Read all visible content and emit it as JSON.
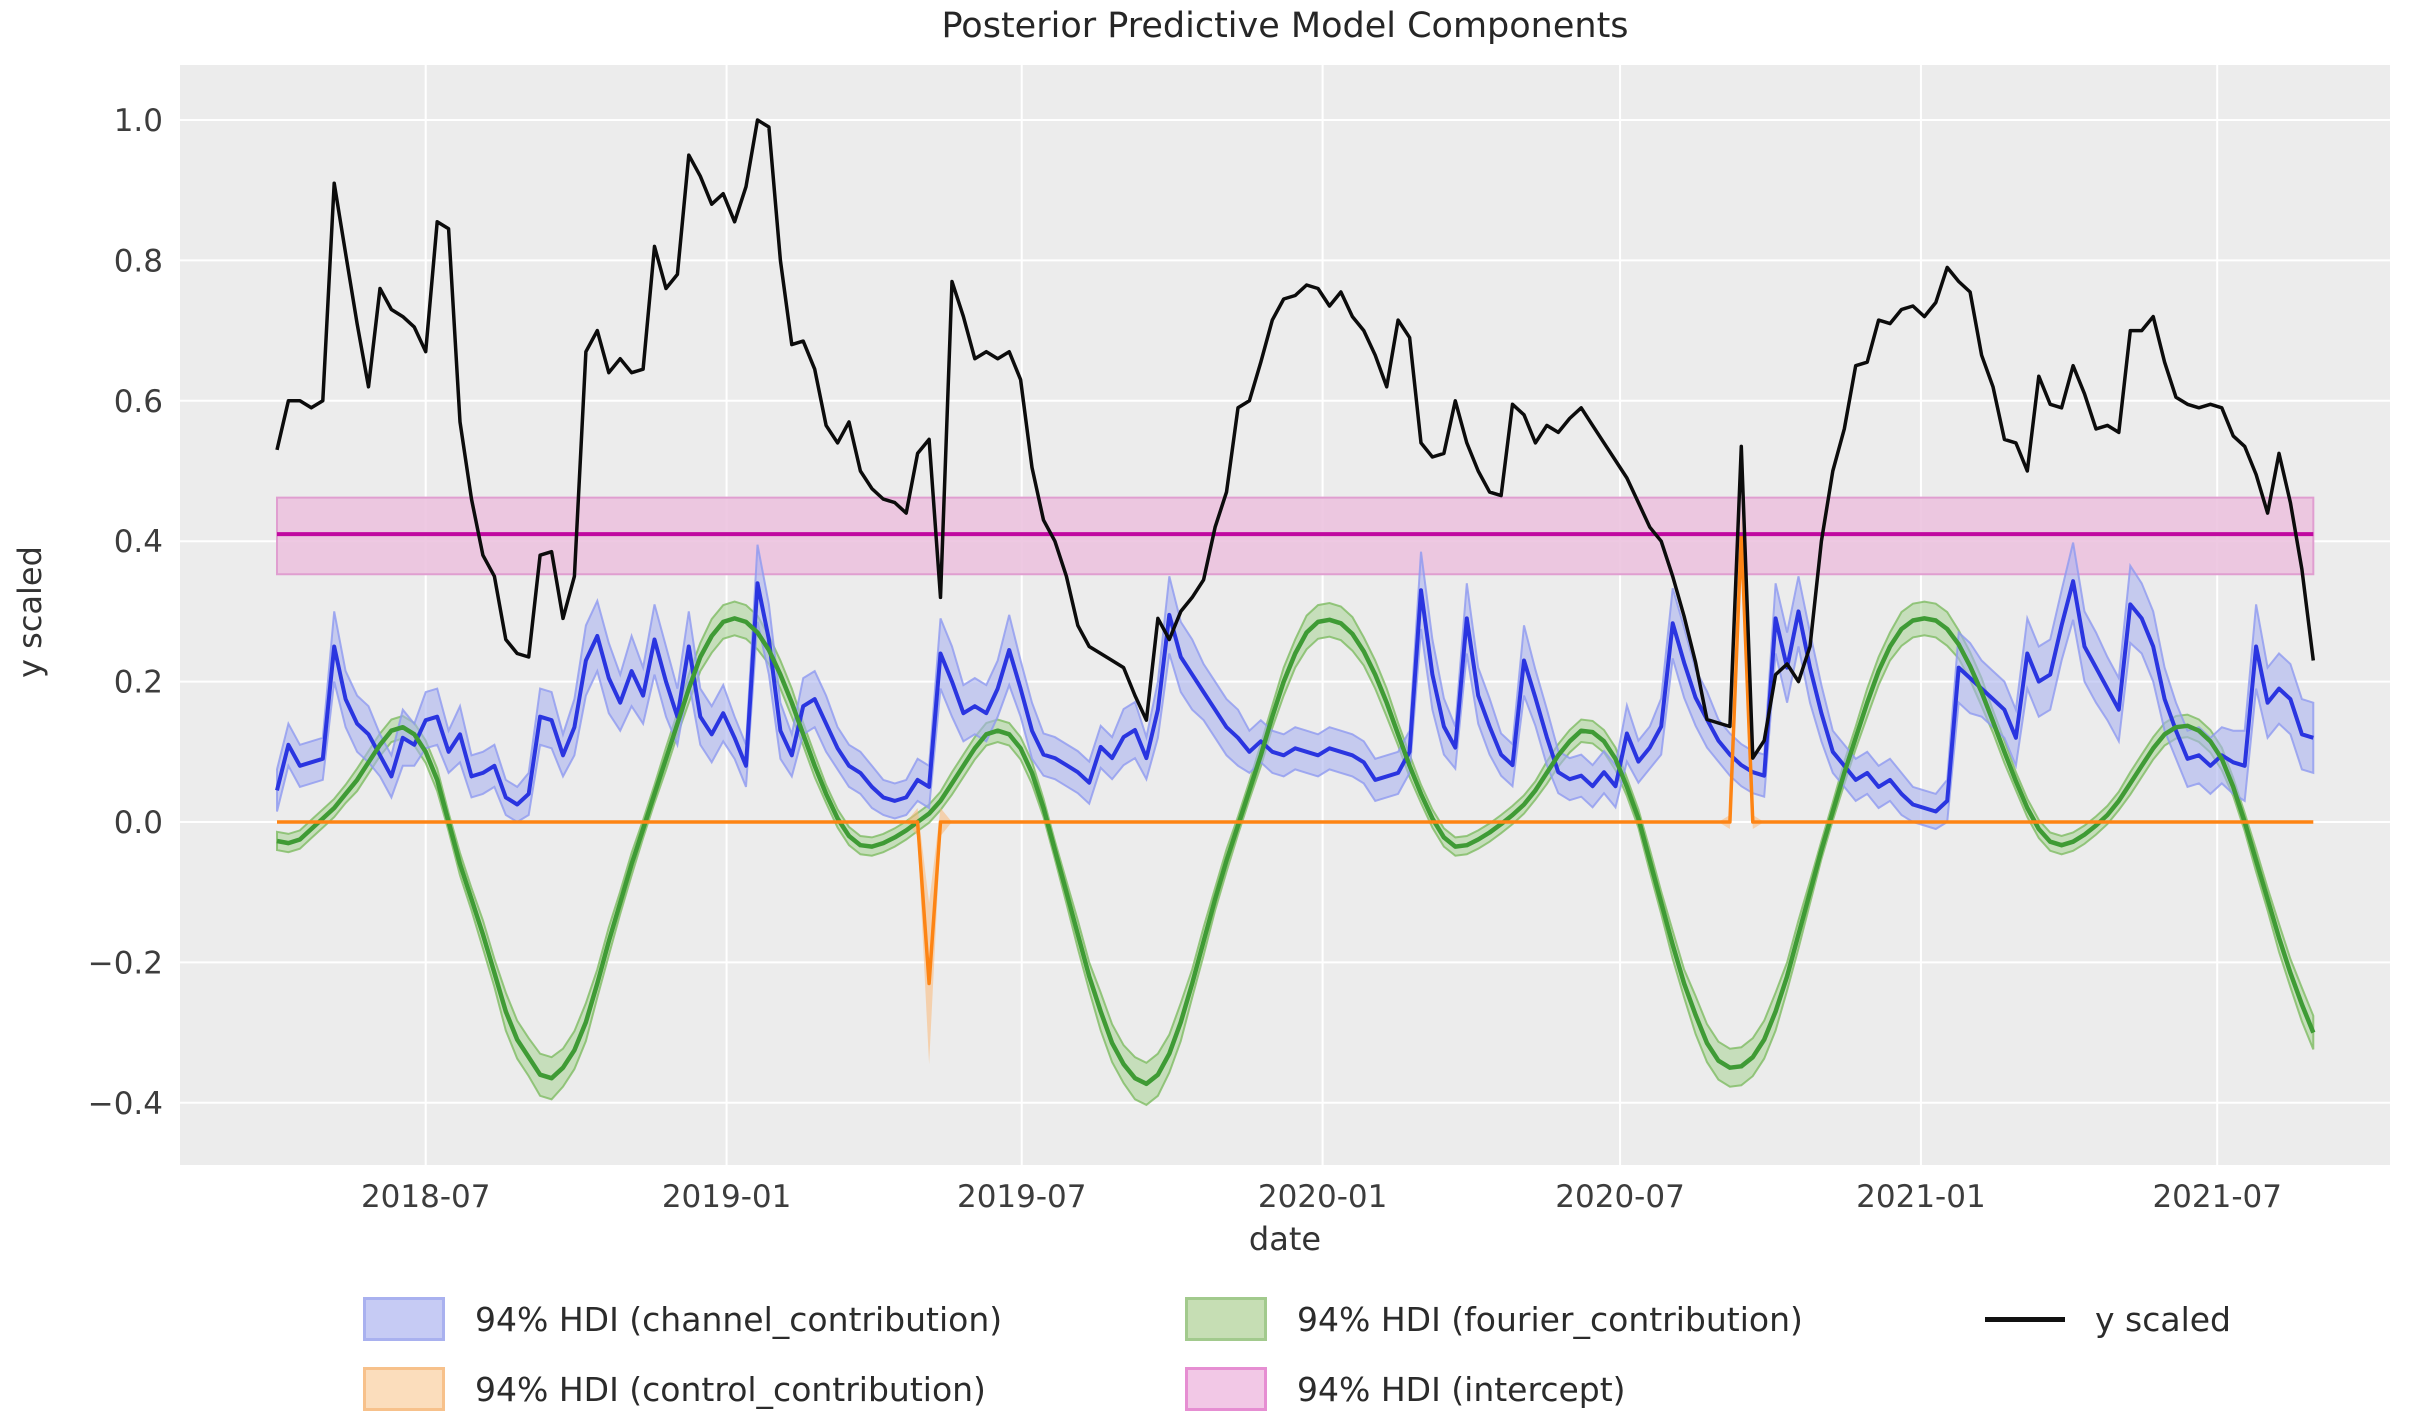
{
  "title": "Posterior Predictive Model Components",
  "axes": {
    "xlabel": "date",
    "ylabel": "y scaled"
  },
  "legend": {
    "items": [
      {
        "key": "channel",
        "label": "94% HDI (channel_contribution)",
        "kind": "patch",
        "fill": "#c6cbf4",
        "edge": "#a9b1ef"
      },
      {
        "key": "control",
        "label": "94% HDI (control_contribution)",
        "kind": "patch",
        "fill": "#fbddbc",
        "edge": "#f7c18b"
      },
      {
        "key": "fourier",
        "label": "94% HDI (fourier_contribution)",
        "kind": "patch",
        "fill": "#c6deb4",
        "edge": "#a2ca8d"
      },
      {
        "key": "intercept",
        "label": "94% HDI (intercept)",
        "kind": "patch",
        "fill": "#f2c8e6",
        "edge": "#e68ed2"
      },
      {
        "key": "y_scaled",
        "label": "y scaled",
        "kind": "line",
        "fill": "#111111",
        "edge": "#111111"
      }
    ]
  },
  "chart_data": {
    "type": "line",
    "title": "Posterior Predictive Model Components",
    "xlabel": "date",
    "ylabel": "y scaled",
    "x_start": "2018-04-01",
    "x_step_days": 7,
    "n_points": 179,
    "ylim": [
      -0.45,
      1.07
    ],
    "grid": true,
    "plot_bg": "#ececec",
    "grid_color": "#ffffff",
    "layout": {
      "plot": [
        180,
        65,
        2390,
        1165
      ],
      "x0": 277,
      "dx": 11.44,
      "y0": 822,
      "yscale": 702
    },
    "xticks": {
      "week_positions": [
        13.0,
        39.3,
        65.1,
        91.4,
        117.4,
        143.7,
        169.6
      ],
      "labels": [
        "2018-07",
        "2019-01",
        "2019-07",
        "2020-01",
        "2020-07",
        "2021-01",
        "2021-07"
      ]
    },
    "yticks": [
      {
        "v": -0.4,
        "label": "−0.4"
      },
      {
        "v": -0.2,
        "label": "−0.2"
      },
      {
        "v": 0.0,
        "label": "0.0"
      },
      {
        "v": 0.2,
        "label": "0.2"
      },
      {
        "v": 0.4,
        "label": "0.4"
      },
      {
        "v": 0.6,
        "label": "0.6"
      },
      {
        "v": 0.8,
        "label": "0.8"
      },
      {
        "v": 1.0,
        "label": "1.0"
      }
    ],
    "series": [
      {
        "key": "intercept",
        "label": "94% HDI (intercept)",
        "kind": "hband",
        "mean": 0.41,
        "low": 0.353,
        "high": 0.462,
        "line_color": "#c008a0",
        "band_fill": "#ecc3df",
        "band_edge": "#e09ed0",
        "band_opacity": 0.9,
        "line_width": 4
      },
      {
        "key": "fourier_contribution",
        "label": "94% HDI (fourier_contribution)",
        "kind": "band_line",
        "line_color": "#3f9b35",
        "band_fill": "#a8d493",
        "band_edge": "#7ebc63",
        "band_opacity": 0.55,
        "line_width": 4.5,
        "mean": [
          -0.027,
          -0.03,
          -0.025,
          -0.01,
          0.005,
          0.02,
          0.04,
          0.06,
          0.085,
          0.11,
          0.13,
          0.135,
          0.125,
          0.1,
          0.06,
          0.0,
          -0.06,
          -0.11,
          -0.16,
          -0.215,
          -0.27,
          -0.31,
          -0.335,
          -0.36,
          -0.365,
          -0.35,
          -0.325,
          -0.285,
          -0.23,
          -0.17,
          -0.115,
          -0.06,
          -0.01,
          0.04,
          0.09,
          0.14,
          0.19,
          0.235,
          0.265,
          0.285,
          0.29,
          0.285,
          0.27,
          0.245,
          0.21,
          0.17,
          0.125,
          0.08,
          0.04,
          0.005,
          -0.02,
          -0.033,
          -0.035,
          -0.03,
          -0.022,
          -0.012,
          0.0,
          0.012,
          0.03,
          0.055,
          0.08,
          0.105,
          0.125,
          0.13,
          0.125,
          0.105,
          0.07,
          0.02,
          -0.04,
          -0.1,
          -0.16,
          -0.22,
          -0.27,
          -0.315,
          -0.345,
          -0.365,
          -0.373,
          -0.36,
          -0.33,
          -0.285,
          -0.23,
          -0.17,
          -0.11,
          -0.055,
          -0.005,
          0.045,
          0.095,
          0.15,
          0.2,
          0.24,
          0.27,
          0.285,
          0.288,
          0.283,
          0.268,
          0.243,
          0.21,
          0.17,
          0.125,
          0.08,
          0.04,
          0.005,
          -0.022,
          -0.035,
          -0.033,
          -0.025,
          -0.015,
          -0.003,
          0.01,
          0.025,
          0.045,
          0.07,
          0.095,
          0.115,
          0.13,
          0.128,
          0.115,
          0.09,
          0.05,
          0.005,
          -0.055,
          -0.115,
          -0.175,
          -0.23,
          -0.275,
          -0.315,
          -0.34,
          -0.35,
          -0.348,
          -0.335,
          -0.31,
          -0.27,
          -0.22,
          -0.16,
          -0.1,
          -0.04,
          0.015,
          0.07,
          0.12,
          0.17,
          0.215,
          0.25,
          0.275,
          0.287,
          0.29,
          0.287,
          0.275,
          0.253,
          0.222,
          0.185,
          0.143,
          0.1,
          0.058,
          0.02,
          -0.01,
          -0.028,
          -0.033,
          -0.028,
          -0.018,
          -0.005,
          0.01,
          0.03,
          0.055,
          0.08,
          0.105,
          0.125,
          0.135,
          0.137,
          0.13,
          0.115,
          0.09,
          0.05,
          0.0,
          -0.055,
          -0.11,
          -0.165,
          -0.215,
          -0.26,
          -0.3
        ],
        "hw": [
          0.013,
          0.013,
          0.013,
          0.013,
          0.013,
          0.013,
          0.013,
          0.016,
          0.016,
          0.016,
          0.016,
          0.016,
          0.016,
          0.016,
          0.016,
          0.013,
          0.016,
          0.016,
          0.02,
          0.02,
          0.027,
          0.027,
          0.027,
          0.03,
          0.03,
          0.027,
          0.027,
          0.027,
          0.02,
          0.02,
          0.016,
          0.016,
          0.013,
          0.013,
          0.016,
          0.016,
          0.02,
          0.02,
          0.024,
          0.024,
          0.024,
          0.024,
          0.024,
          0.02,
          0.02,
          0.02,
          0.016,
          0.016,
          0.013,
          0.013,
          0.013,
          0.013,
          0.013,
          0.013,
          0.013,
          0.013,
          0.013,
          0.013,
          0.013,
          0.016,
          0.016,
          0.016,
          0.016,
          0.016,
          0.016,
          0.016,
          0.016,
          0.013,
          0.013,
          0.016,
          0.02,
          0.02,
          0.027,
          0.027,
          0.027,
          0.03,
          0.03,
          0.03,
          0.027,
          0.027,
          0.02,
          0.02,
          0.016,
          0.016,
          0.013,
          0.013,
          0.016,
          0.016,
          0.02,
          0.02,
          0.024,
          0.024,
          0.024,
          0.024,
          0.024,
          0.02,
          0.02,
          0.02,
          0.016,
          0.016,
          0.013,
          0.013,
          0.013,
          0.013,
          0.013,
          0.013,
          0.013,
          0.013,
          0.013,
          0.013,
          0.013,
          0.016,
          0.016,
          0.016,
          0.016,
          0.016,
          0.016,
          0.016,
          0.013,
          0.013,
          0.016,
          0.016,
          0.02,
          0.02,
          0.027,
          0.027,
          0.027,
          0.027,
          0.027,
          0.027,
          0.027,
          0.027,
          0.02,
          0.02,
          0.016,
          0.013,
          0.013,
          0.016,
          0.016,
          0.02,
          0.02,
          0.02,
          0.024,
          0.024,
          0.024,
          0.024,
          0.024,
          0.02,
          0.02,
          0.02,
          0.016,
          0.016,
          0.013,
          0.013,
          0.013,
          0.013,
          0.013,
          0.013,
          0.013,
          0.013,
          0.013,
          0.013,
          0.016,
          0.016,
          0.016,
          0.016,
          0.016,
          0.016,
          0.016,
          0.016,
          0.016,
          0.013,
          0.013,
          0.016,
          0.016,
          0.02,
          0.02,
          0.024,
          0.024
        ]
      },
      {
        "key": "channel_contribution",
        "label": "94% HDI (channel_contribution)",
        "kind": "band_line",
        "line_color": "#2a35e0",
        "band_fill": "#a9b2f0",
        "band_edge": "#8e9af0",
        "band_opacity": 0.58,
        "line_width": 4,
        "mean": [
          0.045,
          0.11,
          0.08,
          0.085,
          0.09,
          0.25,
          0.175,
          0.14,
          0.125,
          0.095,
          0.065,
          0.12,
          0.11,
          0.145,
          0.15,
          0.1,
          0.125,
          0.065,
          0.07,
          0.08,
          0.035,
          0.025,
          0.04,
          0.15,
          0.145,
          0.095,
          0.135,
          0.23,
          0.265,
          0.205,
          0.17,
          0.215,
          0.18,
          0.26,
          0.2,
          0.15,
          0.25,
          0.15,
          0.125,
          0.155,
          0.12,
          0.08,
          0.34,
          0.26,
          0.13,
          0.095,
          0.165,
          0.175,
          0.14,
          0.105,
          0.08,
          0.07,
          0.05,
          0.035,
          0.03,
          0.035,
          0.06,
          0.05,
          0.24,
          0.2,
          0.155,
          0.165,
          0.155,
          0.19,
          0.245,
          0.19,
          0.13,
          0.096,
          0.091,
          0.081,
          0.071,
          0.056,
          0.107,
          0.091,
          0.121,
          0.131,
          0.091,
          0.16,
          0.295,
          0.235,
          0.21,
          0.185,
          0.16,
          0.135,
          0.12,
          0.1,
          0.115,
          0.1,
          0.095,
          0.105,
          0.1,
          0.095,
          0.105,
          0.1,
          0.095,
          0.085,
          0.06,
          0.065,
          0.07,
          0.1,
          0.33,
          0.21,
          0.136,
          0.106,
          0.29,
          0.18,
          0.136,
          0.096,
          0.081,
          0.23,
          0.177,
          0.121,
          0.071,
          0.061,
          0.066,
          0.051,
          0.071,
          0.051,
          0.126,
          0.086,
          0.106,
          0.136,
          0.283,
          0.227,
          0.177,
          0.146,
          0.116,
          0.096,
          0.081,
          0.071,
          0.066,
          0.29,
          0.22,
          0.3,
          0.22,
          0.155,
          0.1,
          0.08,
          0.06,
          0.07,
          0.05,
          0.06,
          0.04,
          0.025,
          0.02,
          0.015,
          0.03,
          0.22,
          0.205,
          0.19,
          0.175,
          0.16,
          0.12,
          0.24,
          0.2,
          0.21,
          0.28,
          0.343,
          0.25,
          0.22,
          0.19,
          0.16,
          0.31,
          0.29,
          0.25,
          0.175,
          0.13,
          0.09,
          0.095,
          0.08,
          0.095,
          0.085,
          0.08,
          0.25,
          0.17,
          0.19,
          0.175,
          0.125,
          0.12
        ],
        "hw": [
          0.03,
          0.03,
          0.03,
          0.03,
          0.03,
          0.05,
          0.04,
          0.04,
          0.04,
          0.03,
          0.03,
          0.04,
          0.03,
          0.04,
          0.04,
          0.03,
          0.04,
          0.03,
          0.03,
          0.03,
          0.025,
          0.025,
          0.03,
          0.04,
          0.04,
          0.03,
          0.04,
          0.05,
          0.05,
          0.05,
          0.04,
          0.05,
          0.04,
          0.05,
          0.05,
          0.04,
          0.05,
          0.04,
          0.04,
          0.04,
          0.03,
          0.03,
          0.055,
          0.05,
          0.04,
          0.03,
          0.04,
          0.04,
          0.04,
          0.03,
          0.03,
          0.03,
          0.03,
          0.025,
          0.025,
          0.025,
          0.03,
          0.03,
          0.05,
          0.05,
          0.04,
          0.04,
          0.04,
          0.04,
          0.05,
          0.04,
          0.04,
          0.03,
          0.03,
          0.03,
          0.03,
          0.03,
          0.03,
          0.03,
          0.04,
          0.04,
          0.03,
          0.04,
          0.055,
          0.05,
          0.05,
          0.04,
          0.04,
          0.04,
          0.04,
          0.03,
          0.03,
          0.03,
          0.03,
          0.03,
          0.03,
          0.03,
          0.03,
          0.03,
          0.03,
          0.03,
          0.03,
          0.03,
          0.03,
          0.03,
          0.055,
          0.05,
          0.04,
          0.03,
          0.05,
          0.04,
          0.04,
          0.03,
          0.03,
          0.05,
          0.04,
          0.04,
          0.03,
          0.03,
          0.03,
          0.03,
          0.03,
          0.03,
          0.04,
          0.03,
          0.03,
          0.04,
          0.05,
          0.05,
          0.04,
          0.04,
          0.03,
          0.03,
          0.03,
          0.03,
          0.03,
          0.05,
          0.05,
          0.05,
          0.05,
          0.04,
          0.03,
          0.03,
          0.03,
          0.03,
          0.03,
          0.03,
          0.03,
          0.025,
          0.025,
          0.025,
          0.03,
          0.05,
          0.05,
          0.04,
          0.04,
          0.04,
          0.04,
          0.05,
          0.05,
          0.05,
          0.05,
          0.055,
          0.05,
          0.05,
          0.045,
          0.045,
          0.055,
          0.05,
          0.05,
          0.045,
          0.04,
          0.04,
          0.04,
          0.04,
          0.04,
          0.045,
          0.05,
          0.06,
          0.05,
          0.05,
          0.05,
          0.05,
          0.05
        ]
      },
      {
        "key": "control_contribution",
        "label": "94% HDI (control_contribution)",
        "kind": "event_band_line",
        "line_color": "#fd8414",
        "band_fill": "#fcb97a",
        "band_edge": "none",
        "band_opacity": 0.55,
        "line_width": 3.5,
        "baseline": 0.0,
        "events": [
          {
            "index": 56,
            "value": 0.0,
            "hw": 0.02
          },
          {
            "index": 57,
            "value": -0.23,
            "hw": 0.115
          },
          {
            "index": 58,
            "value": 0.0,
            "hw": 0.02
          },
          {
            "index": 127,
            "value": 0.0,
            "hw": 0.01
          },
          {
            "index": 128,
            "value": 0.41,
            "hw": 0.03
          },
          {
            "index": 129,
            "value": 0.0,
            "hw": 0.01
          }
        ]
      },
      {
        "key": "y_scaled",
        "label": "y scaled",
        "kind": "line",
        "line_color": "#0c0c0c",
        "line_width": 3.5,
        "values": [
          0.53,
          0.6,
          0.6,
          0.59,
          0.6,
          0.91,
          0.81,
          0.71,
          0.62,
          0.76,
          0.73,
          0.72,
          0.705,
          0.67,
          0.855,
          0.845,
          0.57,
          0.46,
          0.38,
          0.35,
          0.26,
          0.24,
          0.235,
          0.38,
          0.385,
          0.29,
          0.35,
          0.67,
          0.7,
          0.64,
          0.66,
          0.64,
          0.645,
          0.82,
          0.76,
          0.78,
          0.95,
          0.92,
          0.88,
          0.895,
          0.855,
          0.905,
          1.0,
          0.99,
          0.8,
          0.68,
          0.685,
          0.645,
          0.565,
          0.54,
          0.57,
          0.5,
          0.475,
          0.46,
          0.455,
          0.44,
          0.525,
          0.545,
          0.32,
          0.77,
          0.72,
          0.66,
          0.67,
          0.66,
          0.67,
          0.63,
          0.505,
          0.43,
          0.4,
          0.35,
          0.28,
          0.25,
          0.24,
          0.23,
          0.22,
          0.18,
          0.145,
          0.29,
          0.26,
          0.3,
          0.32,
          0.345,
          0.42,
          0.47,
          0.59,
          0.6,
          0.655,
          0.715,
          0.745,
          0.75,
          0.765,
          0.76,
          0.735,
          0.755,
          0.72,
          0.7,
          0.665,
          0.62,
          0.715,
          0.69,
          0.54,
          0.52,
          0.525,
          0.6,
          0.54,
          0.5,
          0.47,
          0.465,
          0.595,
          0.58,
          0.54,
          0.565,
          0.555,
          0.575,
          0.59,
          0.565,
          0.54,
          0.515,
          0.49,
          0.455,
          0.42,
          0.4,
          0.35,
          0.293,
          0.227,
          0.146,
          0.141,
          0.136,
          0.535,
          0.091,
          0.116,
          0.21,
          0.225,
          0.2,
          0.25,
          0.4,
          0.5,
          0.56,
          0.65,
          0.655,
          0.715,
          0.71,
          0.73,
          0.735,
          0.72,
          0.74,
          0.79,
          0.77,
          0.755,
          0.665,
          0.62,
          0.545,
          0.54,
          0.5,
          0.635,
          0.595,
          0.59,
          0.65,
          0.61,
          0.56,
          0.565,
          0.555,
          0.7,
          0.7,
          0.72,
          0.655,
          0.605,
          0.595,
          0.59,
          0.595,
          0.59,
          0.55,
          0.535,
          0.495,
          0.44,
          0.525,
          0.455,
          0.36,
          0.23
        ]
      }
    ]
  }
}
